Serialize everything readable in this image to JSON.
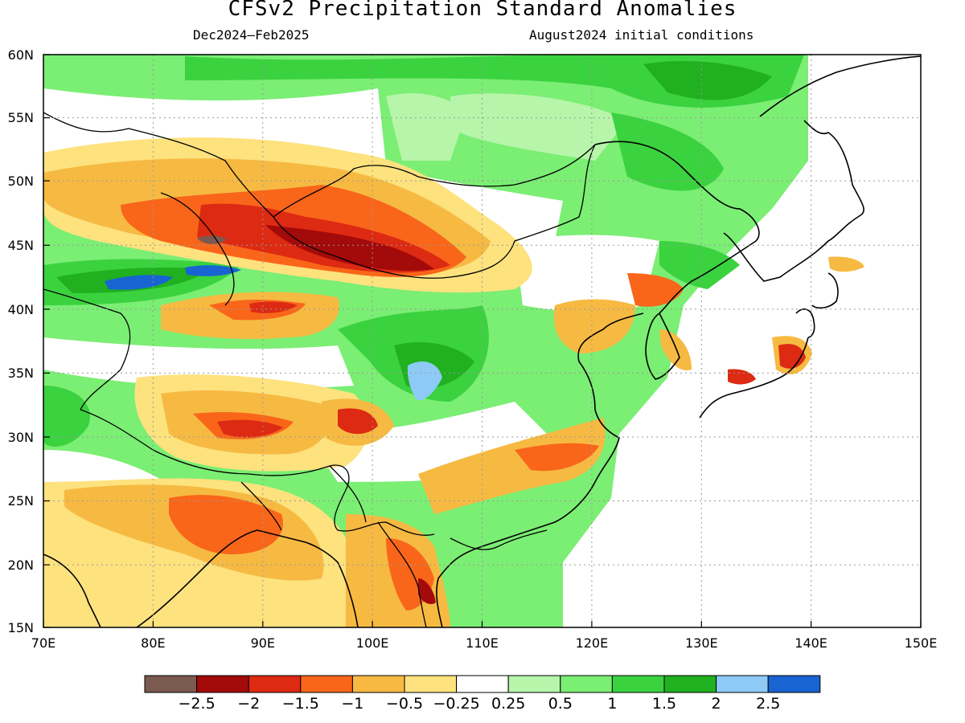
{
  "title": "CFSv2 Precipitation Standard Anomalies",
  "subtitle_left": "Dec2024–Feb2025",
  "subtitle_right": "August2024 initial conditions",
  "axes": {
    "lon_labels": [
      "70E",
      "80E",
      "90E",
      "100E",
      "110E",
      "120E",
      "130E",
      "140E",
      "150E"
    ],
    "lat_labels": [
      "15N",
      "20N",
      "25N",
      "30N",
      "35N",
      "40N",
      "45N",
      "50N",
      "55N",
      "60N"
    ]
  },
  "colorbar": {
    "colors": [
      "#7b5a4f",
      "#a30a0a",
      "#dd2a12",
      "#f9661a",
      "#f6ba42",
      "#fde27e",
      "#ffffff",
      "#b6f5aa",
      "#7bee74",
      "#3bd23f",
      "#20b020",
      "#8dcbf6",
      "#1864d2"
    ],
    "labels": [
      "−2.5",
      "−2",
      "−1.5",
      "−1",
      "−0.5",
      "−0.25",
      "0.25",
      "0.5",
      "1",
      "1.5",
      "2",
      "2.5"
    ]
  },
  "map": {
    "extent": {
      "lon": [
        70,
        150
      ],
      "lat": [
        15,
        60
      ]
    },
    "grid": true,
    "background_anomaly": "0.5 to 1"
  }
}
